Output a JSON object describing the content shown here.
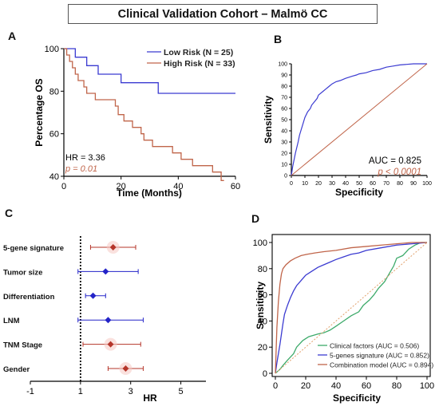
{
  "title": "Clinical Validation Cohort – Malmö CC",
  "chart_data": [
    {
      "panel": "A",
      "type": "line",
      "xlabel": "Time (Months)",
      "ylabel": "Percentage OS",
      "xlim": [
        0,
        60
      ],
      "ylim": [
        40,
        100
      ],
      "xticks": [
        0,
        20,
        40,
        60
      ],
      "yticks": [
        40,
        60,
        80,
        100
      ],
      "annotations": {
        "hr": "HR = 3.36",
        "p": "p = 0.01"
      },
      "series": [
        {
          "name": "Low Risk (N = 25)",
          "color": "#3b3bd1",
          "x": [
            0,
            4,
            8,
            12,
            20,
            32,
            33,
            60
          ],
          "y": [
            100,
            96,
            92,
            88,
            84,
            84,
            79,
            79
          ]
        },
        {
          "name": "High Risk (N = 33)",
          "color": "#c0654a",
          "x": [
            0,
            1,
            2,
            3,
            4,
            5,
            7,
            8,
            11,
            16,
            18,
            19,
            21,
            24,
            27,
            28,
            31,
            35,
            38,
            41,
            45,
            48,
            52,
            55,
            56
          ],
          "y": [
            100,
            97,
            94,
            91,
            88,
            85,
            82,
            79,
            76,
            76,
            73,
            69,
            66,
            63,
            60,
            57,
            54,
            54,
            51,
            48,
            45,
            45,
            42,
            38,
            38
          ]
        }
      ]
    },
    {
      "panel": "B",
      "type": "line",
      "xlabel": "Specificity",
      "ylabel": "Sensitivity",
      "xlim": [
        0,
        100
      ],
      "ylim": [
        0,
        100
      ],
      "xticks": [
        0,
        10,
        20,
        30,
        40,
        50,
        60,
        70,
        80,
        90,
        100
      ],
      "yticks": [
        0,
        10,
        20,
        30,
        40,
        50,
        60,
        70,
        80,
        90,
        100
      ],
      "annotations": {
        "auc": "AUC = 0.825",
        "p": "p < 0.0001"
      },
      "series": [
        {
          "name": "",
          "color": "#3b3bd1",
          "x": [
            0,
            1,
            2,
            3,
            4,
            5,
            6,
            7,
            8,
            9,
            10,
            12,
            14,
            15,
            17,
            19,
            20,
            23,
            25,
            28,
            30,
            33,
            36,
            40,
            45,
            48,
            50,
            55,
            60,
            65,
            70,
            75,
            80,
            90,
            100
          ],
          "y": [
            0,
            8,
            14,
            20,
            25,
            30,
            36,
            40,
            44,
            48,
            52,
            57,
            60,
            63,
            66,
            69,
            72,
            75,
            77,
            80,
            82,
            84,
            85,
            87,
            89,
            90,
            91,
            92,
            94,
            95,
            97,
            98,
            99,
            100,
            100
          ]
        },
        {
          "name": "",
          "color": "#c0654a",
          "x": [
            0,
            100
          ],
          "y": [
            0,
            100
          ]
        }
      ]
    },
    {
      "panel": "C",
      "type": "scatter",
      "xlabel": "HR",
      "xlim": [
        -1,
        6
      ],
      "xticks": [
        -1,
        1,
        3,
        5
      ],
      "reference_line": 1,
      "categories": [
        "5-gene signature",
        "Tumor size",
        "Differentiation",
        "LNM",
        "TNM Stage",
        "Gender"
      ],
      "hr": [
        2.3,
        2.0,
        1.5,
        2.1,
        2.2,
        2.8
      ],
      "ci_low": [
        1.4,
        0.9,
        1.2,
        0.9,
        1.1,
        2.1
      ],
      "ci_high": [
        3.2,
        3.3,
        2.0,
        3.5,
        3.4,
        3.5
      ],
      "colors": [
        "#b5352a",
        "#2323c8",
        "#2323c8",
        "#2323c8",
        "#b5352a",
        "#b5352a"
      ]
    },
    {
      "panel": "D",
      "type": "line",
      "xlabel": "Specificity",
      "ylabel": "Sensitivity",
      "xlim": [
        0,
        100
      ],
      "ylim": [
        0,
        100
      ],
      "xticks": [
        0,
        20,
        40,
        60,
        80,
        100
      ],
      "yticks": [
        0,
        20,
        40,
        60,
        80,
        100
      ],
      "series": [
        {
          "name": "Clinical factors (AUC = 0.506)",
          "color": "#3daa6a",
          "x": [
            0,
            3,
            5,
            8,
            12,
            14,
            18,
            22,
            28,
            32,
            36,
            40,
            45,
            50,
            55,
            58,
            62,
            65,
            68,
            72,
            75,
            78,
            80,
            84,
            88,
            92,
            96,
            100
          ],
          "y": [
            0,
            3,
            6,
            10,
            15,
            20,
            25,
            28,
            30,
            31,
            33,
            36,
            40,
            44,
            47,
            52,
            56,
            60,
            65,
            70,
            76,
            82,
            88,
            90,
            95,
            98,
            100,
            100
          ]
        },
        {
          "name": "5-genes signature (AUC = 0.852)",
          "color": "#3b3bd1",
          "x": [
            0,
            1,
            2,
            3,
            4,
            5,
            6,
            8,
            10,
            12,
            14,
            17,
            20,
            24,
            28,
            32,
            36,
            40,
            45,
            50,
            55,
            60,
            70,
            80,
            90,
            100
          ],
          "y": [
            0,
            8,
            15,
            22,
            30,
            38,
            45,
            52,
            58,
            63,
            67,
            71,
            75,
            78,
            81,
            83,
            85,
            87,
            89,
            91,
            92,
            94,
            96,
            98,
            99,
            100
          ]
        },
        {
          "name": "Combination model (AUC = 0.894)",
          "color": "#c0654a",
          "x": [
            0,
            1,
            2,
            3,
            4,
            5,
            7,
            10,
            13,
            17,
            21,
            26,
            32,
            40,
            50,
            60,
            70,
            80,
            90,
            100
          ],
          "y": [
            0,
            35,
            55,
            68,
            76,
            80,
            83,
            86,
            88,
            90,
            91,
            92,
            93,
            94,
            96,
            97,
            98,
            99,
            100,
            100
          ]
        },
        {
          "name": "",
          "color": "#e2a06b",
          "dashed": true,
          "x": [
            0,
            100
          ],
          "y": [
            0,
            100
          ]
        }
      ]
    }
  ]
}
